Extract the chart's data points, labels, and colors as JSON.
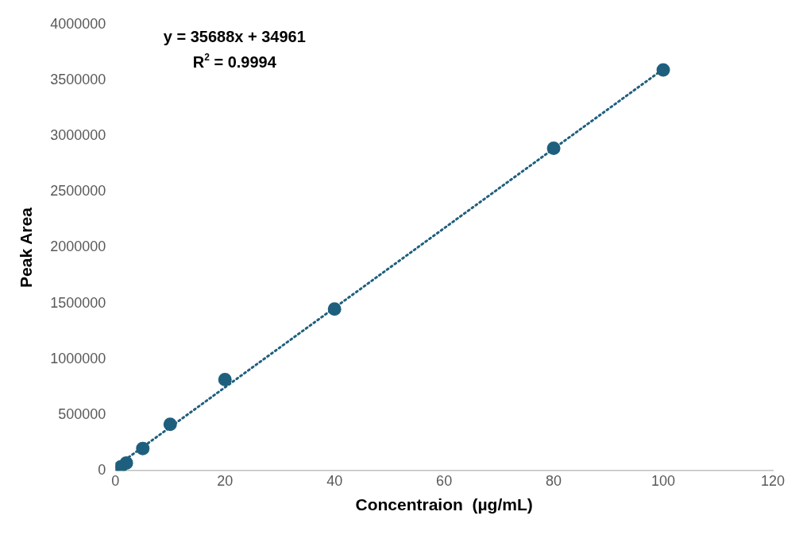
{
  "chart_data": {
    "type": "scatter",
    "xlabel": "Concentraion  (µg/mL)",
    "ylabel": "Peak Area",
    "x": [
      1,
      2,
      5,
      10,
      20,
      40,
      80,
      100
    ],
    "series": [
      {
        "type": "scatter",
        "color": "#1f5f7e",
        "values": [
          35000,
          70000,
          200000,
          416000,
          817000,
          1449000,
          2890000,
          3592000
        ]
      },
      {
        "type": "line",
        "color": "#1f5f7e",
        "x": [
          1,
          100
        ],
        "values": [
          70000,
          3600000
        ],
        "line_style": "dotted",
        "marker": "none"
      }
    ],
    "marker": "circle",
    "xlim": [
      0,
      120
    ],
    "xticks": [
      0,
      20,
      40,
      60,
      80,
      100,
      120
    ],
    "ylim": [
      0,
      4000000
    ],
    "yticks": [
      0,
      500000,
      1000000,
      1500000,
      2000000,
      2500000,
      3000000,
      3500000,
      4000000
    ],
    "grid": false,
    "legend": false,
    "annotations": [
      "y = 35688x + 34961",
      "R$^{2}$ = 0.9994"
    ]
  }
}
